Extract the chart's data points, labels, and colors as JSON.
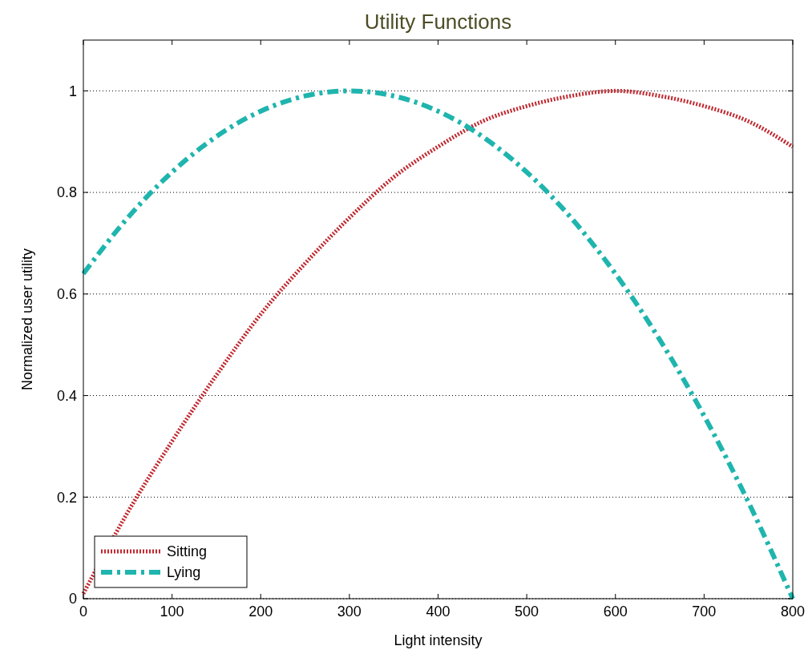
{
  "chart_data": {
    "type": "line",
    "title": "Utility Functions",
    "xlabel": "Light intensity",
    "ylabel": "Normalized user utility",
    "x": [
      0,
      50,
      100,
      150,
      200,
      250,
      300,
      350,
      400,
      450,
      500,
      550,
      600,
      650,
      700,
      750,
      800
    ],
    "series": [
      {
        "name": "Sitting",
        "color": "#c0282f",
        "line_style": "dotted",
        "values": [
          0.01,
          0.17,
          0.31,
          0.44,
          0.56,
          0.66,
          0.75,
          0.83,
          0.89,
          0.94,
          0.97,
          0.99,
          1,
          0.99,
          0.97,
          0.94,
          0.89
        ]
      },
      {
        "name": "Lying",
        "color": "#1fb5ae",
        "line_style": "dashed",
        "values": [
          0.64,
          0.75,
          0.84,
          0.91,
          0.96,
          0.99,
          1,
          0.99,
          0.96,
          0.91,
          0.84,
          0.75,
          0.64,
          0.51,
          0.36,
          0.19,
          0
        ]
      }
    ],
    "xlim": [
      0,
      800
    ],
    "xticks": [
      0,
      100,
      200,
      300,
      400,
      500,
      600,
      700,
      800
    ],
    "ylim": [
      0,
      1.1
    ],
    "yticks": [
      0,
      0.2,
      0.4,
      0.6,
      0.8,
      1
    ],
    "grid": "y",
    "legend": "bottom left",
    "marker": "none"
  }
}
